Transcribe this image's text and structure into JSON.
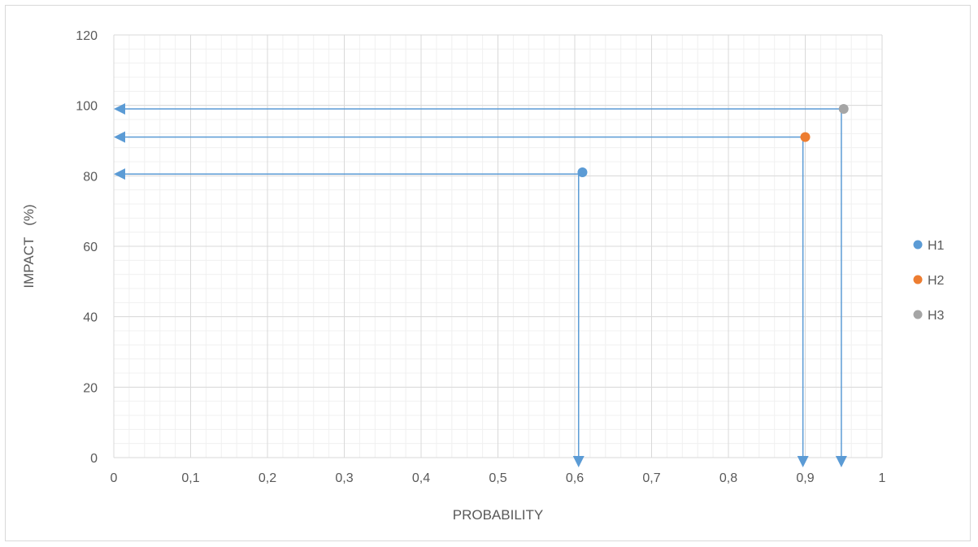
{
  "chart_data": {
    "type": "scatter",
    "title": "",
    "xlabel": "PROBABILITY",
    "ylabel": "IMPACT   (%)",
    "xlim": [
      0,
      1
    ],
    "ylim": [
      0,
      120
    ],
    "x_ticks": [
      0,
      0.1,
      0.2,
      0.3,
      0.4,
      0.5,
      0.6,
      0.7,
      0.8,
      0.9,
      1
    ],
    "x_tick_labels": [
      "0",
      "0,1",
      "0,2",
      "0,3",
      "0,4",
      "0,5",
      "0,6",
      "0,7",
      "0,8",
      "0,9",
      "1"
    ],
    "y_ticks": [
      0,
      20,
      40,
      60,
      80,
      100,
      120
    ],
    "y_tick_labels": [
      "0",
      "20",
      "40",
      "60",
      "80",
      "100",
      "120"
    ],
    "grid": true,
    "minor_grid": true,
    "legend_position": "right",
    "series": [
      {
        "name": "H1",
        "color": "#5b9bd5",
        "points": [
          {
            "x": 0.61,
            "y": 81
          }
        ]
      },
      {
        "name": "H2",
        "color": "#ed7d31",
        "points": [
          {
            "x": 0.9,
            "y": 91
          }
        ]
      },
      {
        "name": "H3",
        "color": "#a5a5a5",
        "points": [
          {
            "x": 0.95,
            "y": 99
          }
        ]
      }
    ],
    "guide_arrows": {
      "color": "#5b9bd5",
      "lines": [
        {
          "corner": {
            "x": 0.605,
            "y": 80.5
          },
          "targets": [
            "x-axis",
            "y-axis"
          ]
        },
        {
          "corner": {
            "x": 0.897,
            "y": 91
          },
          "targets": [
            "x-axis",
            "y-axis"
          ]
        },
        {
          "corner": {
            "x": 0.947,
            "y": 99
          },
          "targets": [
            "x-axis",
            "y-axis"
          ]
        }
      ]
    }
  }
}
